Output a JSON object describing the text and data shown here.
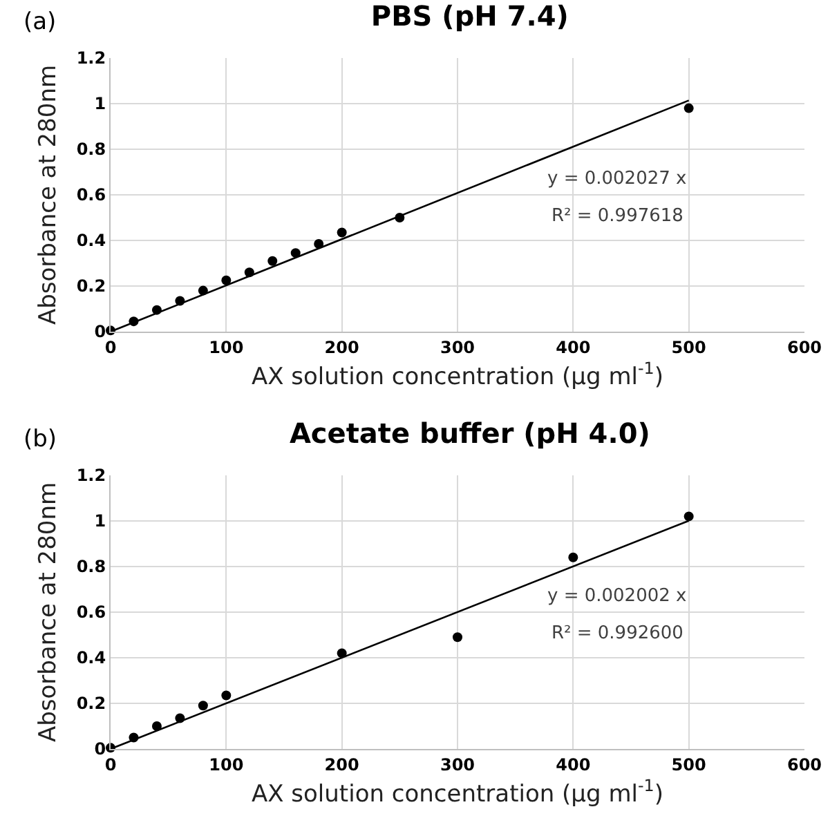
{
  "chart_data": [
    {
      "type": "scatter",
      "title": "PBS (pH 7.4)",
      "xlabel": "AX solution concentration (μg ml$^{-1}$)",
      "ylabel": "Absorbance at 280nm",
      "annotations": [
        "(a)",
        "y = 0.002027 x",
        "R² = 0.997618"
      ],
      "series": [
        {
          "type": "scatter",
          "color": "#000000",
          "marker": "circle",
          "x": [
            0,
            20,
            40,
            60,
            80,
            100,
            120,
            140,
            160,
            180,
            200,
            250,
            500
          ],
          "values": [
            0.005,
            0.045,
            0.095,
            0.135,
            0.18,
            0.225,
            0.26,
            0.31,
            0.345,
            0.385,
            0.435,
            0.5,
            0.98
          ]
        },
        {
          "type": "line",
          "color": "#000000",
          "marker": "none",
          "line_style": "solid",
          "x": [
            0,
            500
          ],
          "values": [
            0,
            1.014
          ]
        }
      ],
      "xlim": [
        0,
        600
      ],
      "xticks": [
        0,
        100,
        200,
        300,
        400,
        500,
        600
      ],
      "ylim": [
        0,
        1.2
      ],
      "yticks": [
        0,
        0.2,
        0.4,
        0.6,
        0.8,
        1,
        1.2
      ],
      "grid": true
    },
    {
      "type": "scatter",
      "title": "Acetate buffer (pH 4.0)",
      "xlabel": "AX solution concentration (μg ml$^{-1}$)",
      "ylabel": "Absorbance at 280nm",
      "annotations": [
        "(b)",
        "y = 0.002002 x",
        "R² = 0.992600"
      ],
      "series": [
        {
          "type": "scatter",
          "color": "#000000",
          "marker": "circle",
          "x": [
            0,
            20,
            40,
            60,
            80,
            100,
            200,
            300,
            400,
            500
          ],
          "values": [
            0.005,
            0.05,
            0.1,
            0.135,
            0.19,
            0.235,
            0.42,
            0.49,
            0.84,
            1.02
          ]
        },
        {
          "type": "line",
          "color": "#000000",
          "marker": "none",
          "line_style": "solid",
          "x": [
            0,
            500
          ],
          "values": [
            0,
            1.001
          ]
        }
      ],
      "xlim": [
        0,
        600
      ],
      "xticks": [
        0,
        100,
        200,
        300,
        400,
        500,
        600
      ],
      "ylim": [
        0,
        1.2
      ],
      "yticks": [
        0,
        0.2,
        0.4,
        0.6,
        0.8,
        1,
        1.2
      ],
      "grid": true
    }
  ]
}
